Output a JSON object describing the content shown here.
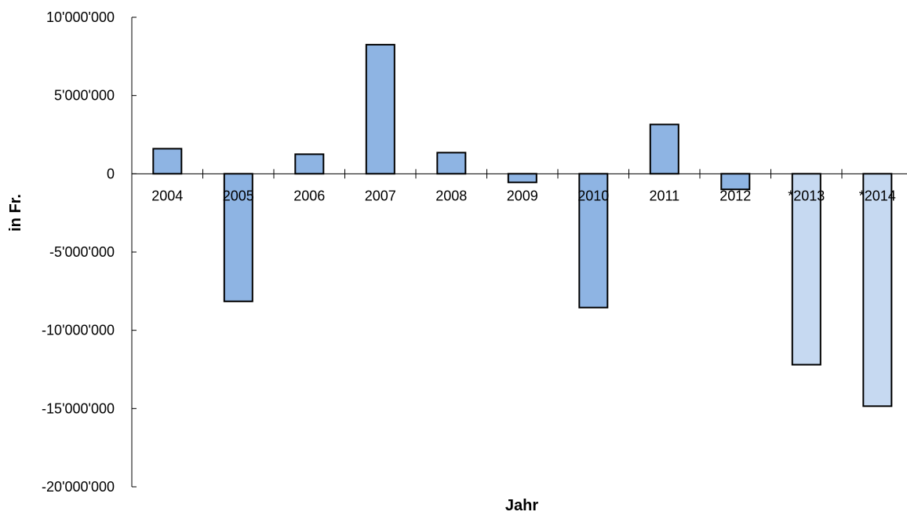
{
  "chart_data": {
    "type": "bar",
    "title": "",
    "xlabel": "Jahr",
    "ylabel": "in Fr.",
    "categories": [
      "2004",
      "2005",
      "2006",
      "2007",
      "2008",
      "2009",
      "2010",
      "2011",
      "2012",
      "*2013",
      "*2014"
    ],
    "values": [
      1600000,
      -8150000,
      1250000,
      8250000,
      1350000,
      -550000,
      -8550000,
      3150000,
      -1000000,
      -12200000,
      -14850000
    ],
    "projected": [
      false,
      false,
      false,
      false,
      false,
      false,
      false,
      false,
      false,
      true,
      true
    ],
    "ylim": [
      -20000000,
      10000000
    ],
    "yticks": [
      10000000,
      5000000,
      0,
      -5000000,
      -10000000,
      -15000000,
      -20000000
    ],
    "ytick_labels": [
      "10'000'000",
      "5'000'000",
      "0",
      "-5'000'000",
      "-10'000'000",
      "-15'000'000",
      "-20'000'000"
    ],
    "grid": false,
    "legend": "none",
    "colors": {
      "bar": "#8eb4e3",
      "bar_projected": "#c6d9f1",
      "outline": "#000000"
    }
  }
}
